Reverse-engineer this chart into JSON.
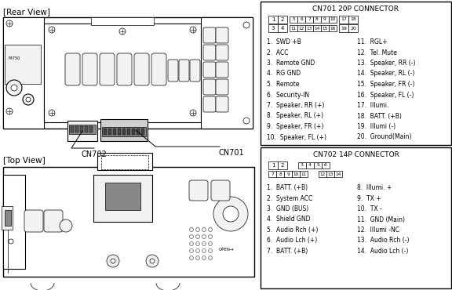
{
  "bg_color": "#ffffff",
  "rear_view_label": "[Rear View]",
  "top_view_label": "[Top View]",
  "cn701_title": "CN701 20P CONNECTOR",
  "cn702_title": "CN702 14P CONNECTOR",
  "cn701_label": "CN701",
  "cn702_label": "CN702",
  "cn701_left": [
    "1.  SWD +B",
    "2.  ACC",
    "3.  Remote GND",
    "4.  RG GND",
    "5.  Remote",
    "6.  Security-IN",
    "7.  Speaker, RR (+)",
    "8.  Speaker, RL (+)",
    "9.  Speaker, FR (+)",
    "10.  Speaker, FL (+)"
  ],
  "cn701_right": [
    "11.  RGL+",
    "12.  Tel. Mute",
    "13.  Speaker, RR (-)",
    "14.  Speaker, RL (-)",
    "15.  Speaker, FR (-)",
    "16.  Speaker, FL (-)",
    "17.  Illumi.",
    "18.  BATT. (+B)",
    "19.  Illumi (-)",
    "20.  Ground(Main)"
  ],
  "cn702_left": [
    "1.  BATT. (+B)",
    "2.  System ACC",
    "3.  GND (BUS)",
    "4.  Shield GND",
    "5.  Audio Rch (+)",
    "6.  Audio Lch (+)",
    "7.  BATT. (+B)"
  ],
  "cn702_right": [
    "8.  Illumi. +",
    "9.  TX +",
    "10.  TX -",
    "11.  GND (Main)",
    "12.  Illumi -NC",
    "13.  Audio Rch (-)",
    "14.  Audio Lch (-)"
  ]
}
